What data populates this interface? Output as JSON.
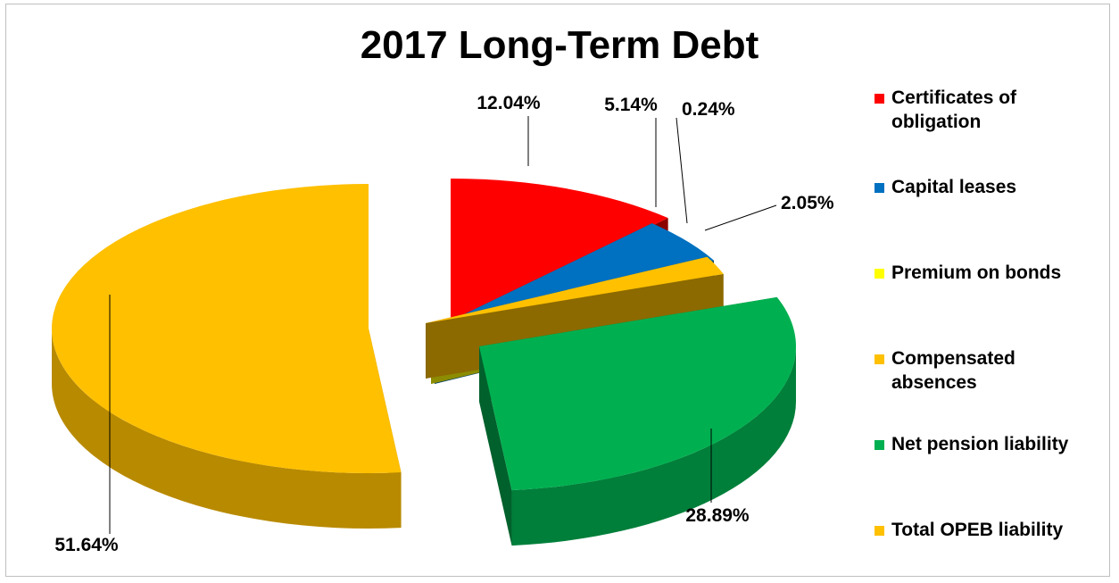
{
  "chart_data": {
    "type": "pie",
    "title": "2017 Long-Term Debt",
    "legend_position": "right",
    "slices": [
      {
        "name": "Certificates of obligation",
        "legend_lines": [
          "Certificates of",
          "obligation"
        ],
        "value": 12.04,
        "label": "12.04%",
        "color": "#ff0000"
      },
      {
        "name": "Capital leases",
        "legend_lines": [
          "Capital leases"
        ],
        "value": 5.14,
        "label": "5.14%",
        "color": "#0070c0"
      },
      {
        "name": "Premium on bonds",
        "legend_lines": [
          "Premium on bonds"
        ],
        "value": 0.24,
        "label": "0.24%",
        "color": "#ffff00"
      },
      {
        "name": "Compensated absences",
        "legend_lines": [
          "Compensated",
          "absences"
        ],
        "value": 2.05,
        "label": "2.05%",
        "color": "#ffc000"
      },
      {
        "name": "Net pension liability",
        "legend_lines": [
          "Net pension liability"
        ],
        "value": 28.89,
        "label": "28.89%",
        "color": "#00b050"
      },
      {
        "name": "Total OPEB liability",
        "legend_lines": [
          "Total OPEB liability"
        ],
        "value": 51.64,
        "label": "51.64%",
        "color": "#ffc000"
      }
    ]
  }
}
